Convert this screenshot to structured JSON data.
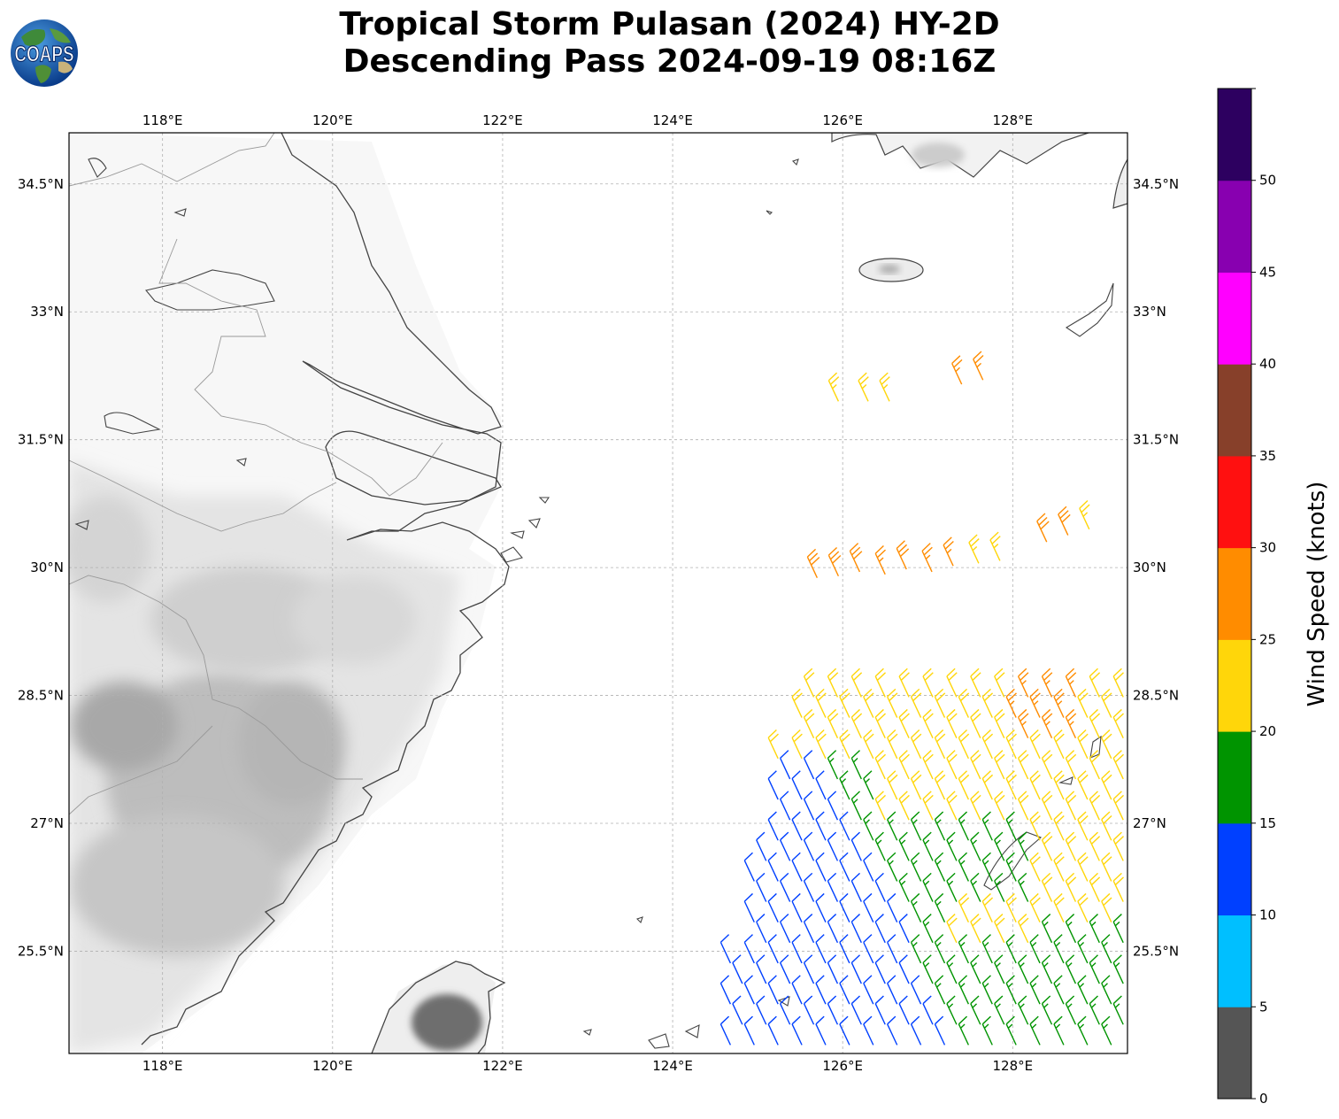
{
  "title": {
    "line1": "Tropical Storm Pulasan (2024) HY-2D",
    "line2": "Descending Pass 2024-09-19 08:16Z"
  },
  "logo": {
    "text": "COAPS",
    "icon": "globe-logo-icon"
  },
  "map": {
    "lon_range": [
      116.9,
      129.35
    ],
    "lat_range": [
      24.3,
      35.1
    ],
    "lon_ticks": [
      118,
      120,
      122,
      124,
      126,
      128
    ],
    "lon_tick_labels": [
      "118°E",
      "120°E",
      "122°E",
      "124°E",
      "126°E",
      "128°E"
    ],
    "lat_ticks": [
      34.5,
      33,
      31.5,
      30,
      28.5,
      27,
      25.5
    ],
    "lat_tick_labels": [
      "34.5°N",
      "33°N",
      "31.5°N",
      "30°N",
      "28.5°N",
      "27°N",
      "25.5°N"
    ],
    "gridlines": true,
    "land_shading": "terrain-gray",
    "wind_direction_deg_from": 335
  },
  "colorbar": {
    "label": "Wind Speed (knots)",
    "ticks": [
      "0",
      "5",
      "10",
      "15",
      "20",
      "25",
      "30",
      "35",
      "40",
      "45",
      "50"
    ],
    "bins": [
      {
        "min": 0,
        "max": 5,
        "color": "#555555"
      },
      {
        "min": 5,
        "max": 10,
        "color": "#00bfff"
      },
      {
        "min": 10,
        "max": 15,
        "color": "#0040ff"
      },
      {
        "min": 15,
        "max": 20,
        "color": "#009400"
      },
      {
        "min": 20,
        "max": 25,
        "color": "#ffd60a"
      },
      {
        "min": 25,
        "max": 30,
        "color": "#ff8c00"
      },
      {
        "min": 30,
        "max": 35,
        "color": "#ff1010"
      },
      {
        "min": 35,
        "max": 40,
        "color": "#87402a"
      },
      {
        "min": 40,
        "max": 45,
        "color": "#ff00ff"
      },
      {
        "min": 45,
        "max": 50,
        "color": "#8800b0"
      },
      {
        "min": 50,
        "max": 55,
        "color": "#2d0060"
      }
    ]
  }
}
